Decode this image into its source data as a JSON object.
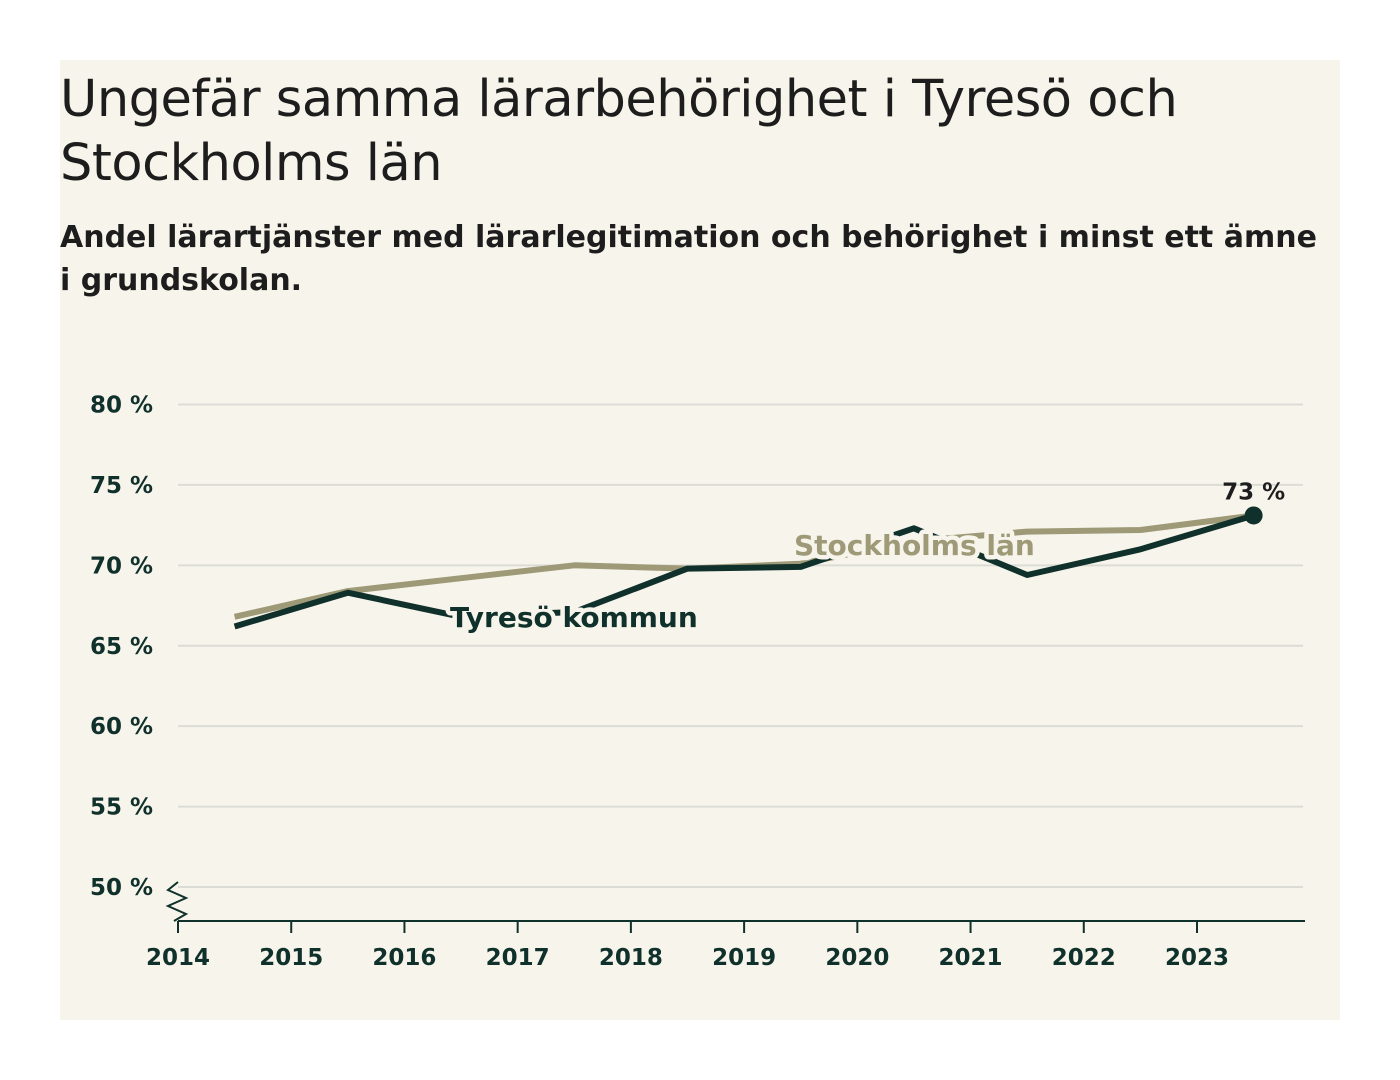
{
  "page": {
    "title": "Ungefär samma lärarbehörighet i Tyresö och Stockholms län",
    "subtitle": "Andel lärartjänster med lärarlegitimation och behörighet i minst ett ämne i grundskolan."
  },
  "chart_data": {
    "type": "line",
    "title": "Ungefär samma lärarbehörighet i Tyresö och Stockholms län",
    "subtitle": "Andel lärartjänster med lärarlegitimation och behörighet i minst ett ämne i grundskolan.",
    "x": [
      2014.5,
      2015.5,
      2016.5,
      2017.5,
      2018.5,
      2019.5,
      2020.5,
      2021.5,
      2022.5,
      2023.5
    ],
    "x_ticks": [
      "2014",
      "2015",
      "2016",
      "2017",
      "2018",
      "2019",
      "2020",
      "2021",
      "2022",
      "2023"
    ],
    "y_ticks": [
      {
        "value": 50,
        "label": "50 %"
      },
      {
        "value": 55,
        "label": "55 %"
      },
      {
        "value": 60,
        "label": "60 %"
      },
      {
        "value": 65,
        "label": "65 %"
      },
      {
        "value": 70,
        "label": "70 %"
      },
      {
        "value": 75,
        "label": "75 %"
      },
      {
        "value": 80,
        "label": "80 %"
      }
    ],
    "xlim": [
      2014,
      2024
    ],
    "ylim": [
      47.8,
      80
    ],
    "axis_break": true,
    "grid": true,
    "series": [
      {
        "name": "Stockholms län",
        "color": "#9e9977",
        "values": [
          66.8,
          68.4,
          69.2,
          70.0,
          69.8,
          70.1,
          71.5,
          72.1,
          72.2,
          73.1
        ]
      },
      {
        "name": "Tyresö kommun",
        "color": "#10302b",
        "values": [
          66.2,
          68.3,
          66.8,
          67.1,
          69.8,
          69.9,
          72.3,
          69.4,
          71.0,
          73.1
        ]
      }
    ],
    "end_annotation": {
      "label": "73 %",
      "value": 73.1,
      "x": 2023.5
    }
  }
}
